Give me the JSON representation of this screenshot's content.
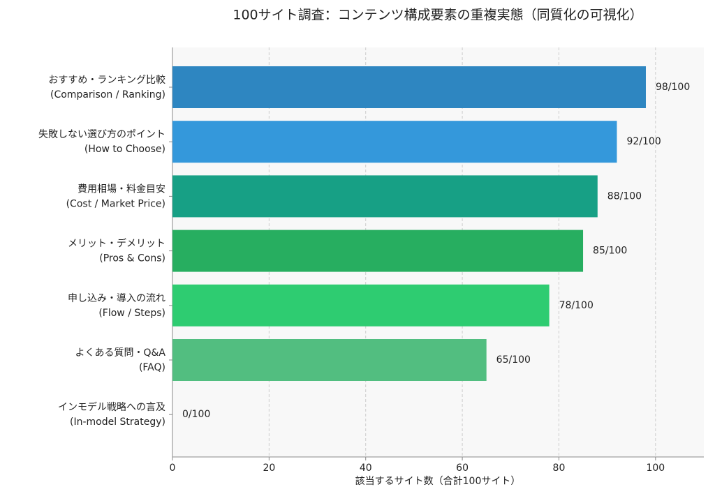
{
  "chart_data": {
    "type": "barh",
    "title": "100サイト調査：コンテンツ構成要素の重複実態（同質化の可視化）",
    "xlabel": "該当するサイト数（合計100サイト）",
    "categories": [
      [
        "おすすめ・ランキング比較",
        "(Comparison / Ranking)"
      ],
      [
        "失敗しない選び方のポイント",
        "(How to Choose)"
      ],
      [
        "費用相場・料金目安",
        "(Cost / Market Price)"
      ],
      [
        "メリット・デメリット",
        "(Pros & Cons)"
      ],
      [
        "申し込み・導入の流れ",
        "(Flow / Steps)"
      ],
      [
        "よくある質問・Q&A",
        "(FAQ)"
      ],
      [
        "インモデル戦略への言及",
        "(In-model Strategy)"
      ]
    ],
    "values": [
      98,
      92,
      88,
      85,
      78,
      65,
      0
    ],
    "value_labels": [
      "98/100",
      "92/100",
      "88/100",
      "85/100",
      "78/100",
      "65/100",
      "0/100"
    ],
    "colors": [
      "#2e86c1",
      "#3498db",
      "#17a085",
      "#27ae60",
      "#2ecc71",
      "#52be80",
      "#82e0aa"
    ],
    "xlim": [
      0,
      110
    ],
    "xticks": [
      0,
      20,
      40,
      60,
      80,
      100
    ],
    "grid": true
  }
}
